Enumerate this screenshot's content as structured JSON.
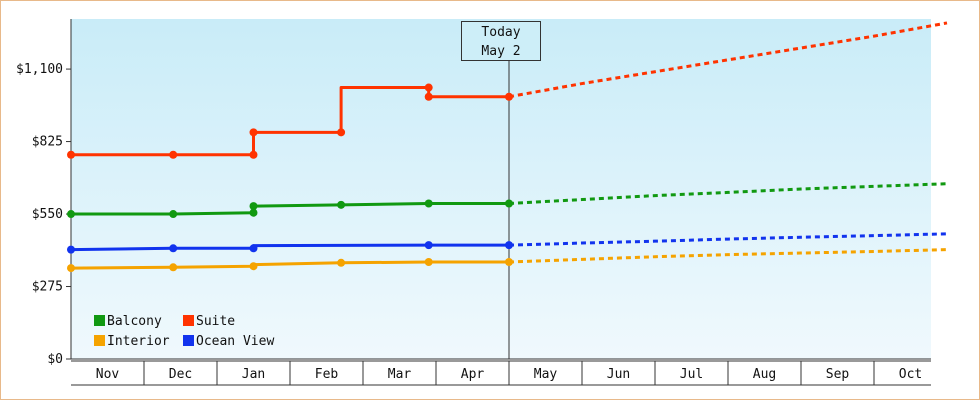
{
  "chart_data": {
    "type": "line",
    "title": "",
    "xlabel": "",
    "ylabel": "",
    "ylim": [
      0,
      1290
    ],
    "y_ticks": [
      {
        "value": 0,
        "label": "$0"
      },
      {
        "value": 275,
        "label": "$275"
      },
      {
        "value": 550,
        "label": "$550"
      },
      {
        "value": 825,
        "label": "$825"
      },
      {
        "value": 1100,
        "label": "$1,100"
      }
    ],
    "categories": [
      "Nov",
      "Dec",
      "Jan",
      "Feb",
      "Mar",
      "Apr",
      "May",
      "Jun",
      "Jul",
      "Aug",
      "Sep",
      "Oct"
    ],
    "today": {
      "line1": "Today",
      "line2": "May 2",
      "x": 6.0
    },
    "legend": {
      "placement": "bottom-left"
    },
    "grid": false,
    "series": [
      {
        "name": "Suite",
        "color": "#ff3300",
        "steps": [
          [
            0.0,
            775
          ],
          [
            1.4,
            775
          ],
          [
            2.5,
            775
          ],
          [
            2.5,
            860
          ],
          [
            3.7,
            860
          ],
          [
            3.7,
            1030
          ],
          [
            4.9,
            1030
          ],
          [
            4.9,
            995
          ],
          [
            6.0,
            995
          ]
        ],
        "forecast": [
          [
            6.0,
            995
          ],
          [
            7.0,
            1045
          ],
          [
            8.0,
            1090
          ],
          [
            9.0,
            1135
          ],
          [
            10.0,
            1180
          ],
          [
            11.0,
            1225
          ],
          [
            12.0,
            1275
          ]
        ]
      },
      {
        "name": "Balcony",
        "color": "#119911",
        "steps": [
          [
            0.0,
            550
          ],
          [
            1.4,
            550
          ],
          [
            2.5,
            555
          ],
          [
            2.5,
            580
          ],
          [
            3.7,
            585
          ],
          [
            4.9,
            590
          ],
          [
            6.0,
            590
          ]
        ],
        "forecast": [
          [
            6.0,
            590
          ],
          [
            7.0,
            605
          ],
          [
            8.0,
            620
          ],
          [
            9.0,
            632
          ],
          [
            10.0,
            645
          ],
          [
            11.0,
            655
          ],
          [
            12.0,
            665
          ]
        ]
      },
      {
        "name": "Ocean View",
        "color": "#1133ee",
        "steps": [
          [
            0.0,
            415
          ],
          [
            1.4,
            420
          ],
          [
            2.5,
            420
          ],
          [
            2.5,
            430
          ],
          [
            4.9,
            432
          ],
          [
            6.0,
            432
          ]
        ],
        "forecast": [
          [
            6.0,
            432
          ],
          [
            7.0,
            440
          ],
          [
            8.0,
            447
          ],
          [
            9.0,
            455
          ],
          [
            10.0,
            462
          ],
          [
            11.0,
            468
          ],
          [
            12.0,
            475
          ]
        ]
      },
      {
        "name": "Interior",
        "color": "#f5a300",
        "steps": [
          [
            0.0,
            345
          ],
          [
            1.4,
            348
          ],
          [
            2.5,
            352
          ],
          [
            2.5,
            358
          ],
          [
            3.7,
            365
          ],
          [
            4.9,
            368
          ],
          [
            6.0,
            368
          ]
        ],
        "forecast": [
          [
            6.0,
            368
          ],
          [
            7.0,
            378
          ],
          [
            8.0,
            388
          ],
          [
            9.0,
            396
          ],
          [
            10.0,
            402
          ],
          [
            11.0,
            408
          ],
          [
            12.0,
            415
          ]
        ]
      }
    ],
    "markers": {
      "Suite": [
        0.0,
        1.4,
        2.5,
        2.5,
        3.7,
        4.9,
        4.9,
        6.0
      ],
      "Balcony": [
        0.0,
        1.4,
        2.5,
        2.5,
        3.7,
        4.9,
        6.0
      ],
      "Ocean View": [
        0.0,
        1.4,
        2.5,
        4.9,
        6.0
      ],
      "Interior": [
        0.0,
        1.4,
        2.5,
        3.7,
        4.9,
        6.0
      ]
    }
  }
}
